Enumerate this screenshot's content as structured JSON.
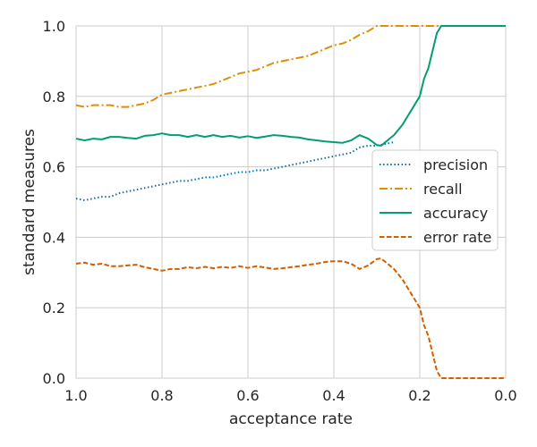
{
  "chart_data": {
    "type": "line",
    "xlabel": "acceptance rate",
    "ylabel": "standard measures",
    "xlim": [
      1.0,
      0.0
    ],
    "ylim": [
      0.0,
      1.0
    ],
    "x_ticks": [
      "1.0",
      "0.8",
      "0.6",
      "0.4",
      "0.2",
      "0.0"
    ],
    "y_ticks": [
      "0.0",
      "0.2",
      "0.4",
      "0.6",
      "0.8",
      "1.0"
    ],
    "grid": true,
    "legend_position": "right",
    "series": [
      {
        "name": "precision",
        "color": "#0173b2",
        "dash": "dotted",
        "points": [
          [
            1.0,
            0.51
          ],
          [
            0.98,
            0.505
          ],
          [
            0.96,
            0.51
          ],
          [
            0.94,
            0.515
          ],
          [
            0.92,
            0.515
          ],
          [
            0.9,
            0.525
          ],
          [
            0.88,
            0.53
          ],
          [
            0.86,
            0.535
          ],
          [
            0.84,
            0.54
          ],
          [
            0.82,
            0.545
          ],
          [
            0.8,
            0.55
          ],
          [
            0.78,
            0.555
          ],
          [
            0.76,
            0.56
          ],
          [
            0.74,
            0.56
          ],
          [
            0.72,
            0.565
          ],
          [
            0.7,
            0.57
          ],
          [
            0.68,
            0.57
          ],
          [
            0.66,
            0.575
          ],
          [
            0.64,
            0.58
          ],
          [
            0.62,
            0.585
          ],
          [
            0.6,
            0.585
          ],
          [
            0.58,
            0.59
          ],
          [
            0.56,
            0.59
          ],
          [
            0.54,
            0.595
          ],
          [
            0.52,
            0.6
          ],
          [
            0.5,
            0.605
          ],
          [
            0.48,
            0.61
          ],
          [
            0.46,
            0.615
          ],
          [
            0.44,
            0.62
          ],
          [
            0.42,
            0.625
          ],
          [
            0.4,
            0.63
          ],
          [
            0.38,
            0.635
          ],
          [
            0.36,
            0.64
          ],
          [
            0.34,
            0.655
          ],
          [
            0.32,
            0.66
          ],
          [
            0.3,
            0.66
          ],
          [
            0.28,
            0.665
          ],
          [
            0.26,
            0.67
          ]
        ]
      },
      {
        "name": "recall",
        "color": "#de8f05",
        "dash": "dashdot",
        "points": [
          [
            1.0,
            0.775
          ],
          [
            0.98,
            0.77
          ],
          [
            0.96,
            0.775
          ],
          [
            0.94,
            0.775
          ],
          [
            0.92,
            0.775
          ],
          [
            0.9,
            0.77
          ],
          [
            0.88,
            0.77
          ],
          [
            0.86,
            0.775
          ],
          [
            0.84,
            0.78
          ],
          [
            0.82,
            0.79
          ],
          [
            0.8,
            0.805
          ],
          [
            0.78,
            0.81
          ],
          [
            0.76,
            0.815
          ],
          [
            0.74,
            0.82
          ],
          [
            0.72,
            0.825
          ],
          [
            0.7,
            0.83
          ],
          [
            0.68,
            0.835
          ],
          [
            0.66,
            0.845
          ],
          [
            0.64,
            0.855
          ],
          [
            0.62,
            0.865
          ],
          [
            0.6,
            0.87
          ],
          [
            0.58,
            0.875
          ],
          [
            0.56,
            0.885
          ],
          [
            0.54,
            0.895
          ],
          [
            0.52,
            0.9
          ],
          [
            0.5,
            0.905
          ],
          [
            0.48,
            0.91
          ],
          [
            0.46,
            0.915
          ],
          [
            0.44,
            0.925
          ],
          [
            0.42,
            0.935
          ],
          [
            0.4,
            0.945
          ],
          [
            0.38,
            0.95
          ],
          [
            0.36,
            0.96
          ],
          [
            0.34,
            0.975
          ],
          [
            0.32,
            0.985
          ],
          [
            0.3,
            1.0
          ],
          [
            0.25,
            1.0
          ],
          [
            0.2,
            1.0
          ],
          [
            0.15,
            1.0
          ],
          [
            0.1,
            1.0
          ],
          [
            0.05,
            1.0
          ],
          [
            0.0,
            1.0
          ]
        ]
      },
      {
        "name": "accuracy",
        "color": "#029e73",
        "dash": "solid",
        "points": [
          [
            1.0,
            0.68
          ],
          [
            0.98,
            0.675
          ],
          [
            0.96,
            0.68
          ],
          [
            0.94,
            0.678
          ],
          [
            0.92,
            0.685
          ],
          [
            0.9,
            0.685
          ],
          [
            0.88,
            0.682
          ],
          [
            0.86,
            0.68
          ],
          [
            0.84,
            0.688
          ],
          [
            0.82,
            0.69
          ],
          [
            0.8,
            0.695
          ],
          [
            0.78,
            0.69
          ],
          [
            0.76,
            0.69
          ],
          [
            0.74,
            0.685
          ],
          [
            0.72,
            0.69
          ],
          [
            0.7,
            0.685
          ],
          [
            0.68,
            0.69
          ],
          [
            0.66,
            0.685
          ],
          [
            0.64,
            0.688
          ],
          [
            0.62,
            0.683
          ],
          [
            0.6,
            0.687
          ],
          [
            0.58,
            0.682
          ],
          [
            0.56,
            0.686
          ],
          [
            0.54,
            0.69
          ],
          [
            0.52,
            0.688
          ],
          [
            0.5,
            0.685
          ],
          [
            0.48,
            0.683
          ],
          [
            0.46,
            0.678
          ],
          [
            0.44,
            0.675
          ],
          [
            0.42,
            0.672
          ],
          [
            0.4,
            0.67
          ],
          [
            0.38,
            0.668
          ],
          [
            0.36,
            0.675
          ],
          [
            0.34,
            0.69
          ],
          [
            0.32,
            0.68
          ],
          [
            0.3,
            0.662
          ],
          [
            0.29,
            0.66
          ],
          [
            0.28,
            0.67
          ],
          [
            0.26,
            0.69
          ],
          [
            0.24,
            0.72
          ],
          [
            0.22,
            0.76
          ],
          [
            0.2,
            0.8
          ],
          [
            0.19,
            0.85
          ],
          [
            0.18,
            0.88
          ],
          [
            0.17,
            0.93
          ],
          [
            0.16,
            0.98
          ],
          [
            0.15,
            1.0
          ],
          [
            0.1,
            1.0
          ],
          [
            0.05,
            1.0
          ],
          [
            0.0,
            1.0
          ]
        ]
      },
      {
        "name": "error rate",
        "color": "#d55e00",
        "dash": "dashed",
        "points": [
          [
            1.0,
            0.325
          ],
          [
            0.98,
            0.328
          ],
          [
            0.96,
            0.322
          ],
          [
            0.94,
            0.325
          ],
          [
            0.92,
            0.318
          ],
          [
            0.9,
            0.318
          ],
          [
            0.88,
            0.32
          ],
          [
            0.86,
            0.322
          ],
          [
            0.84,
            0.315
          ],
          [
            0.82,
            0.31
          ],
          [
            0.8,
            0.305
          ],
          [
            0.78,
            0.31
          ],
          [
            0.76,
            0.31
          ],
          [
            0.74,
            0.315
          ],
          [
            0.72,
            0.312
          ],
          [
            0.7,
            0.316
          ],
          [
            0.68,
            0.312
          ],
          [
            0.66,
            0.316
          ],
          [
            0.64,
            0.313
          ],
          [
            0.62,
            0.318
          ],
          [
            0.6,
            0.313
          ],
          [
            0.58,
            0.318
          ],
          [
            0.56,
            0.314
          ],
          [
            0.54,
            0.31
          ],
          [
            0.52,
            0.312
          ],
          [
            0.5,
            0.315
          ],
          [
            0.48,
            0.318
          ],
          [
            0.46,
            0.322
          ],
          [
            0.44,
            0.325
          ],
          [
            0.42,
            0.33
          ],
          [
            0.4,
            0.332
          ],
          [
            0.38,
            0.332
          ],
          [
            0.36,
            0.325
          ],
          [
            0.34,
            0.31
          ],
          [
            0.32,
            0.32
          ],
          [
            0.3,
            0.338
          ],
          [
            0.29,
            0.34
          ],
          [
            0.28,
            0.33
          ],
          [
            0.26,
            0.31
          ],
          [
            0.24,
            0.28
          ],
          [
            0.22,
            0.24
          ],
          [
            0.2,
            0.2
          ],
          [
            0.19,
            0.15
          ],
          [
            0.18,
            0.12
          ],
          [
            0.17,
            0.07
          ],
          [
            0.16,
            0.02
          ],
          [
            0.15,
            0.0
          ],
          [
            0.1,
            0.0
          ],
          [
            0.05,
            0.0
          ],
          [
            0.0,
            0.0
          ]
        ]
      }
    ]
  }
}
